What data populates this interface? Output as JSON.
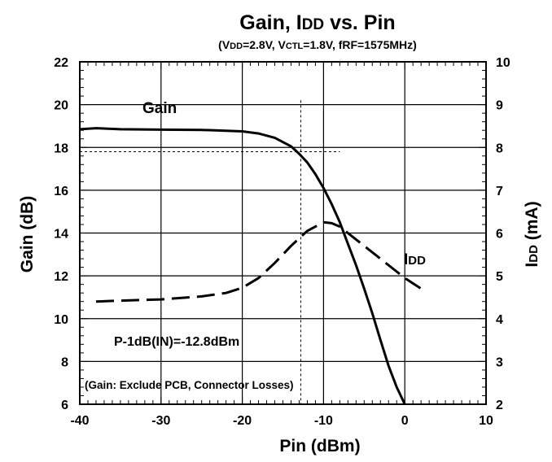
{
  "chart_data": {
    "type": "line",
    "title": "Gain, IDD vs. Pin",
    "title_parts": {
      "a": "Gain, I",
      "b": "DD",
      "c": " vs. Pin"
    },
    "subtitle": "(VDD=2.8V, VCTL=1.8V, fRF=1575MHz)",
    "subtitle_parts": {
      "p1": "(V",
      "p2": "DD",
      "p3": "=2.8V, V",
      "p4": "CTL",
      "p5": "=1.8V, fRF=1575MHz)"
    },
    "xlabel": "Pin (dBm)",
    "ylabel": "Gain (dB)",
    "y2label": "IDD (mA)",
    "y2label_parts": {
      "a": "I",
      "b": "DD",
      "c": " (mA)"
    },
    "xlim": [
      -40,
      10
    ],
    "ylim": [
      6,
      22
    ],
    "y2lim": [
      2,
      10
    ],
    "x_ticks": [
      "-40",
      "-30",
      "-20",
      "-10",
      "0",
      "10"
    ],
    "y_ticks": [
      "6",
      "8",
      "10",
      "12",
      "14",
      "16",
      "18",
      "20",
      "22"
    ],
    "y2_ticks": [
      "2",
      "3",
      "4",
      "5",
      "6",
      "7",
      "8",
      "9",
      "10"
    ],
    "grid": true,
    "series": [
      {
        "name": "Gain",
        "axis": "left",
        "style": "solid",
        "x": [
          -40,
          -38,
          -35,
          -30,
          -25,
          -20,
          -18,
          -16,
          -15,
          -14,
          -13,
          -12,
          -11,
          -10,
          -9,
          -8,
          -7,
          -6,
          -5,
          -4,
          -3,
          -2,
          -1,
          0
        ],
        "y": [
          18.85,
          18.9,
          18.85,
          18.83,
          18.82,
          18.75,
          18.65,
          18.45,
          18.25,
          18.05,
          17.7,
          17.3,
          16.75,
          16.1,
          15.35,
          14.5,
          13.5,
          12.5,
          11.4,
          10.25,
          9.0,
          7.8,
          6.8,
          6.0
        ]
      },
      {
        "name": "IDD",
        "name_parts": {
          "a": "I",
          "b": "DD"
        },
        "axis": "right",
        "style": "dashed",
        "x": [
          -38,
          -35,
          -30,
          -25,
          -22,
          -20,
          -18,
          -16,
          -14,
          -12,
          -11,
          -10,
          -9,
          -8,
          -6,
          -4,
          -2,
          0,
          2
        ],
        "y": [
          4.4,
          4.42,
          4.45,
          4.52,
          4.6,
          4.72,
          4.95,
          5.3,
          5.7,
          6.05,
          6.15,
          6.25,
          6.23,
          6.15,
          5.85,
          5.55,
          5.25,
          4.95,
          4.7
        ]
      }
    ],
    "reference_lines": {
      "x": -12.8,
      "y": 17.8
    },
    "annotations": {
      "gain_label": "Gain",
      "p1db_label": "P-1dB(IN)=-12.8dBm",
      "losses_note": "(Gain: Exclude PCB, Connector Losses)"
    }
  }
}
